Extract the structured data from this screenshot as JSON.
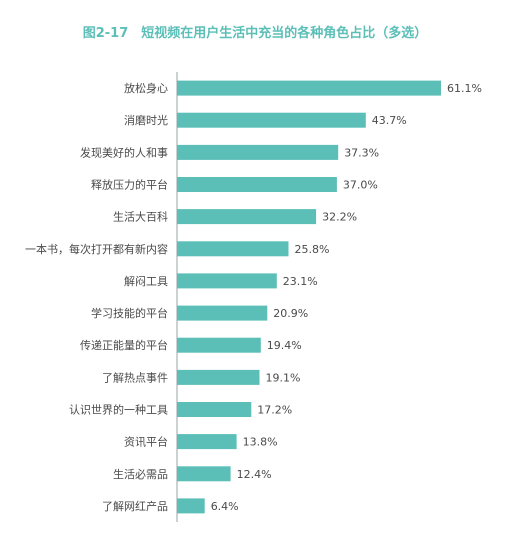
{
  "chart_data": {
    "type": "bar",
    "orientation": "horizontal",
    "title": "图2-17　短视频在用户生活中充当的各种角色占比（多选）",
    "categories": [
      "放松身心",
      "消磨时光",
      "发现美好的人和事",
      "释放压力的平台",
      "生活大百科",
      "一本书，每次打开都有新内容",
      "解闷工具",
      "学习技能的平台",
      "传递正能量的平台",
      "了解热点事件",
      "认识世界的一种工具",
      "资讯平台",
      "生活必需品",
      "了解网红产品"
    ],
    "values": [
      61.1,
      43.7,
      37.3,
      37.0,
      32.2,
      25.8,
      23.1,
      20.9,
      19.4,
      19.1,
      17.2,
      13.8,
      12.4,
      6.4
    ],
    "value_labels": [
      "61.1%",
      "43.7%",
      "37.3%",
      "37.0%",
      "32.2%",
      "25.8%",
      "23.1%",
      "20.9%",
      "19.4%",
      "19.1%",
      "17.2%",
      "13.8%",
      "12.4%",
      "6.4%"
    ],
    "xlim": [
      0,
      61.1
    ],
    "grid": false,
    "bar_color": "#5bbfb8",
    "title_color": "#5bbfb8",
    "axis_color": "#9aa3a9"
  }
}
